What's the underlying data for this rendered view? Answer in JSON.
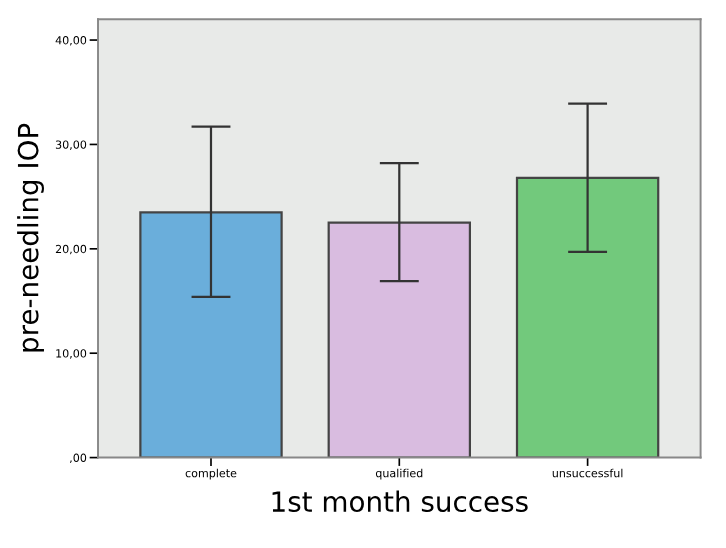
{
  "chart_data": {
    "type": "bar",
    "xlabel": "1st month success",
    "ylabel": "pre-needling IOP",
    "categories": [
      "complete",
      "qualified",
      "unsuccessful"
    ],
    "values": [
      23.5,
      22.5,
      26.8
    ],
    "colors": [
      "#6aaedb",
      "#d9bce0",
      "#72c97c"
    ],
    "errors": [
      [
        15.4,
        31.7
      ],
      [
        16.9,
        28.2
      ],
      [
        19.7,
        33.9
      ]
    ],
    "ylim": [
      0,
      42
    ],
    "yticks": [
      {
        "value": 0,
        "label": ",00"
      },
      {
        "value": 10,
        "label": "10,00"
      },
      {
        "value": 20,
        "label": "20,00"
      },
      {
        "value": 30,
        "label": "30,00"
      },
      {
        "value": 40,
        "label": "40,00"
      }
    ],
    "grid": false
  }
}
